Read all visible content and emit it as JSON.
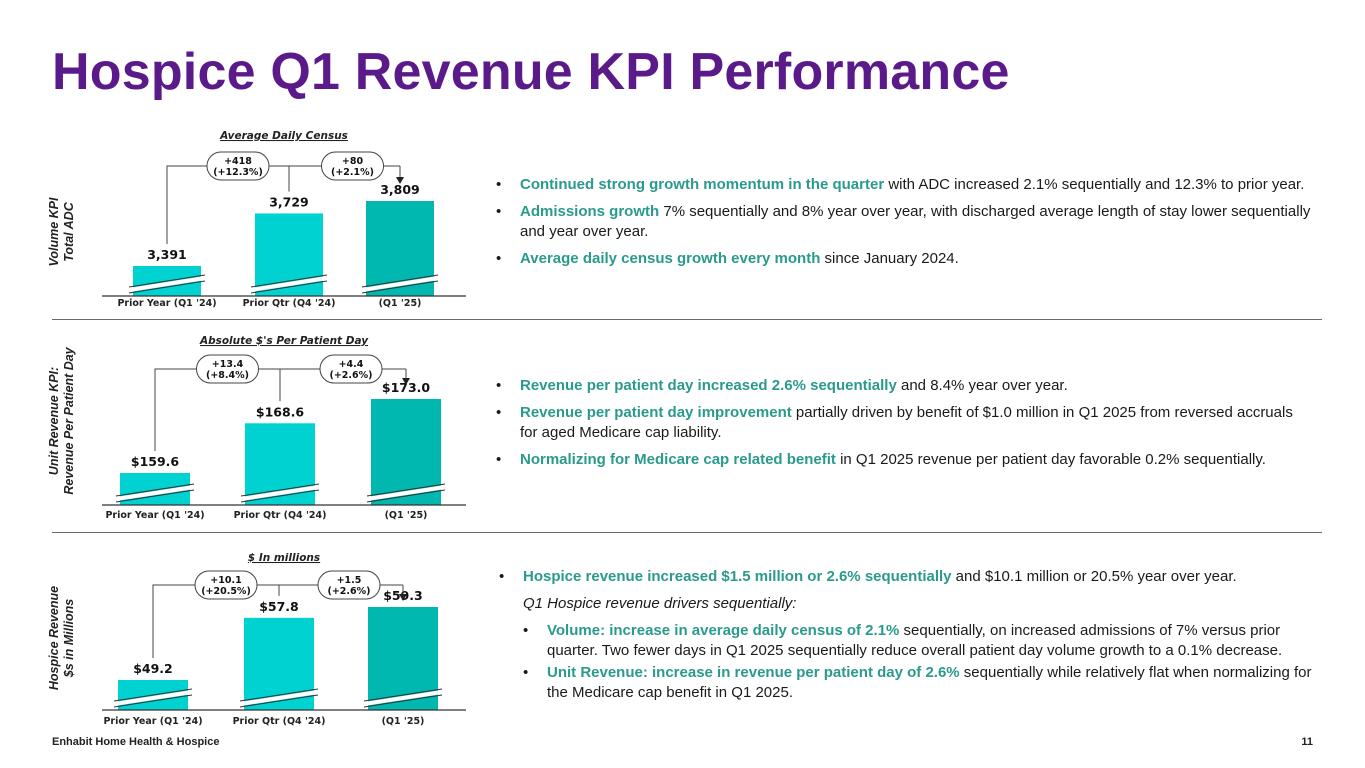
{
  "title": "Hospice Q1 Revenue KPI Performance",
  "colors": {
    "title": "#5b1a8a",
    "highlight": "#2a9a8c",
    "bar_light": "#00d2d2",
    "bar_dark": "#00b8b0"
  },
  "chart_data": [
    {
      "type": "bar",
      "title": "Average Daily Census",
      "ylabel_lines": [
        "Volume KPI",
        "Total ADC"
      ],
      "categories": [
        "Prior Year (Q1 '24)",
        "Prior Qtr (Q4 '24)",
        "(Q1 '25)"
      ],
      "values": [
        3391,
        3729,
        3809
      ],
      "value_labels": [
        "3,391",
        "3,729",
        "3,809"
      ],
      "changes": [
        {
          "line1": "+418",
          "line2": "(+12.3%)"
        },
        {
          "line1": "+80",
          "line2": "(+2.1%)"
        }
      ]
    },
    {
      "type": "bar",
      "title": "Absolute $'s Per Patient Day",
      "ylabel_lines": [
        "Unit Revenue KPI:",
        "Revenue Per Patient Day"
      ],
      "categories": [
        "Prior Year (Q1 '24)",
        "Prior Qtr (Q4 '24)",
        "(Q1 '25)"
      ],
      "values": [
        159.6,
        168.6,
        173.0
      ],
      "value_labels": [
        "$159.6",
        "$168.6",
        "$173.0"
      ],
      "changes": [
        {
          "line1": "+13.4",
          "line2": "(+8.4%)"
        },
        {
          "line1": "+4.4",
          "line2": "(+2.6%)"
        }
      ]
    },
    {
      "type": "bar",
      "title": "$ In millions",
      "ylabel_lines": [
        "Hospice Revenue",
        "$s in Millions"
      ],
      "categories": [
        "Prior Year (Q1 '24)",
        "Prior Qtr (Q4 '24)",
        "(Q1 '25)"
      ],
      "values": [
        49.2,
        57.8,
        59.3
      ],
      "value_labels": [
        "$49.2",
        "$57.8",
        "$59.3"
      ],
      "changes": [
        {
          "line1": "+10.1",
          "line2": "(+20.5%)"
        },
        {
          "line1": "+1.5",
          "line2": "(+2.6%)"
        }
      ]
    }
  ],
  "section1": {
    "bullets": [
      {
        "hl": "Continued strong growth momentum in the quarter",
        "rest": " with ADC increased 2.1% sequentially and 12.3% to prior year."
      },
      {
        "hl": "Admissions growth",
        "rest": " 7% sequentially and 8% year over year, with discharged average length of stay lower sequentially and year over year."
      },
      {
        "hl": "Average daily census growth every month",
        "rest": " since January 2024."
      }
    ]
  },
  "section2": {
    "bullets": [
      {
        "hl": "Revenue per patient day increased 2.6% sequentially",
        "rest": " and 8.4% year over year."
      },
      {
        "hl": "Revenue per patient day improvement",
        "rest": " partially driven by benefit of $1.0 million in Q1 2025 from reversed accruals for aged Medicare cap liability."
      },
      {
        "hl": "Normalizing for Medicare cap related benefit",
        "rest": " in Q1 2025 revenue per patient day favorable 0.2% sequentially."
      }
    ]
  },
  "section3": {
    "bullet": {
      "hl": "Hospice revenue increased $1.5 million or 2.6% sequentially",
      "rest": " and $10.1 million or 20.5% year over year."
    },
    "sub_intro": "Q1 Hospice revenue drivers sequentially:",
    "sub_bullets": [
      {
        "hl": "Volume: increase in average daily census of 2.1%",
        "rest": " sequentially, on increased admissions of 7% versus prior quarter. Two fewer days in Q1 2025 sequentially reduce overall patient day volume growth to a 0.1% decrease."
      },
      {
        "hl": "Unit Revenue: increase in revenue per patient day of 2.6%",
        "rest": " sequentially while relatively flat when normalizing for the Medicare cap benefit in Q1 2025."
      }
    ]
  },
  "footer": {
    "company": "Enhabit Home Health & Hospice",
    "page": "11"
  }
}
